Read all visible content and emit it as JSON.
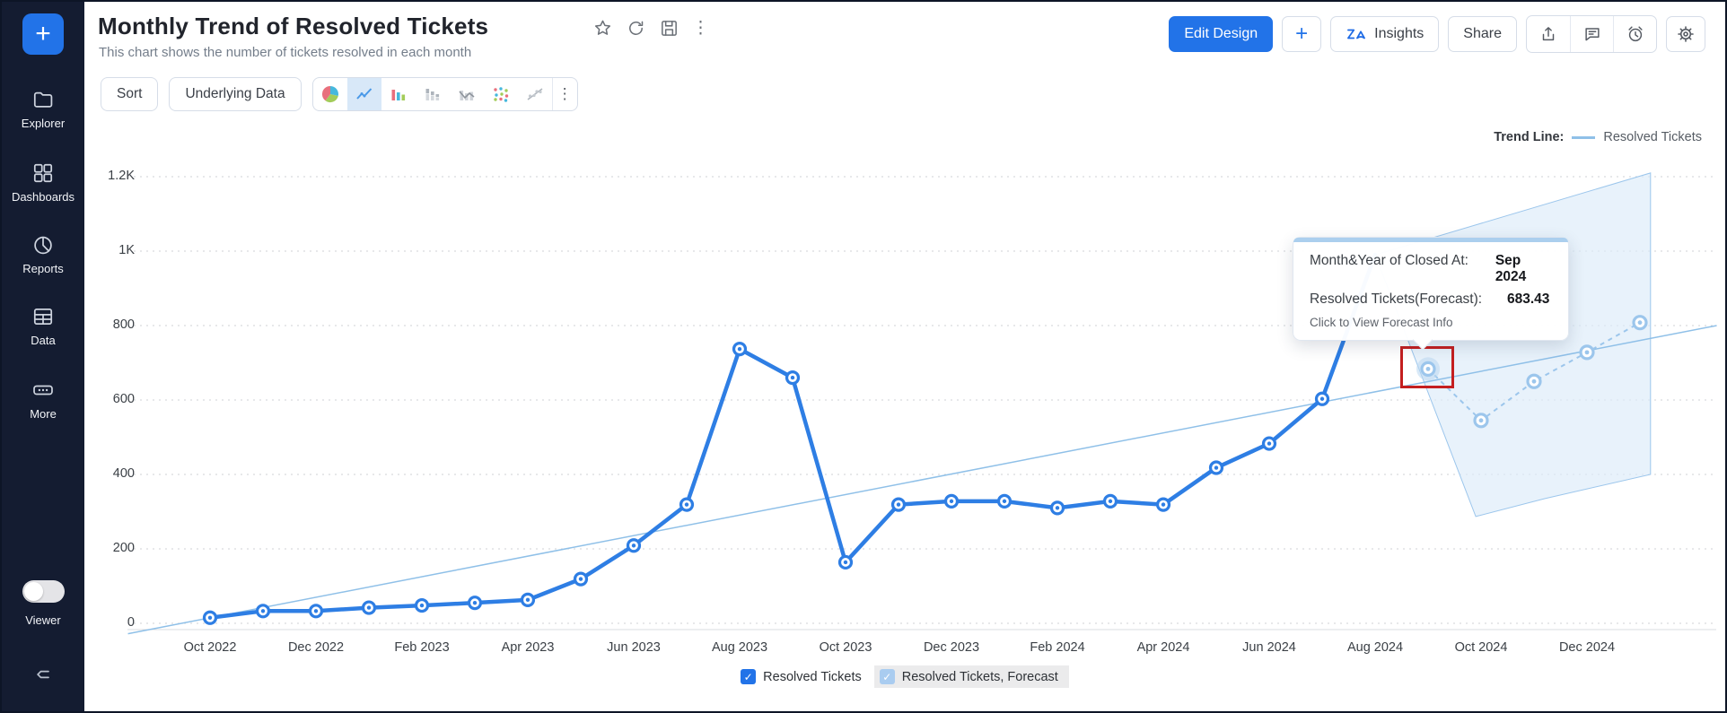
{
  "sidebar": {
    "add_label": "+",
    "items": [
      {
        "label": "Explorer"
      },
      {
        "label": "Dashboards"
      },
      {
        "label": "Reports"
      },
      {
        "label": "Data"
      },
      {
        "label": "More"
      }
    ],
    "viewer_label": "Viewer"
  },
  "header": {
    "title": "Monthly Trend of Resolved Tickets",
    "subtitle": "This chart shows the number of tickets resolved in each month",
    "edit_design": "Edit Design",
    "add": "+",
    "insights": "Insights",
    "share": "Share"
  },
  "toolbar": {
    "sort": "Sort",
    "underlying_data": "Underlying Data",
    "more": "⋮"
  },
  "trend_legend": {
    "label": "Trend Line:",
    "series": "Resolved Tickets"
  },
  "tooltip": {
    "row1_label": "Month&Year of Closed At:",
    "row1_value": "Sep 2024",
    "row2_label": "Resolved Tickets(Forecast):",
    "row2_value": "683.43",
    "footer": "Click to View Forecast Info"
  },
  "legend": {
    "check": "✓"
  },
  "colors": {
    "accent": "#2273e8",
    "line": "#2e7ee4",
    "forecast": "#9cc6ec",
    "band_fill": "#dcebf9",
    "sidebar_bg": "#141c31",
    "highlight_box": "#c41f1f"
  },
  "chart_data": {
    "type": "line",
    "title": "Monthly Trend of Resolved Tickets",
    "x_tick_labels": [
      "Oct 2022",
      "Dec 2022",
      "Feb 2023",
      "Apr 2023",
      "Jun 2023",
      "Aug 2023",
      "Oct 2023",
      "Dec 2023",
      "Feb 2024",
      "Apr 2024",
      "Jun 2024",
      "Aug 2024",
      "Oct 2024",
      "Dec 2024"
    ],
    "y_tick_labels": [
      "0",
      "200",
      "400",
      "600",
      "800",
      "1K",
      "1.2K"
    ],
    "ylim": [
      0,
      1200
    ],
    "grid": "horizontal-dashed",
    "legend_position": "bottom",
    "series": [
      {
        "name": "Resolved Tickets",
        "months": [
          "Oct 2022",
          "Nov 2022",
          "Dec 2022",
          "Jan 2023",
          "Feb 2023",
          "Mar 2023",
          "Apr 2023",
          "May 2023",
          "Jun 2023",
          "Jul 2023",
          "Aug 2023",
          "Sep 2023",
          "Oct 2023",
          "Nov 2023",
          "Dec 2023",
          "Jan 2024",
          "Feb 2024",
          "Mar 2024",
          "Apr 2024",
          "May 2024",
          "Jun 2024",
          "Jul 2024",
          "Aug 2024"
        ],
        "values": [
          15,
          33,
          33,
          42,
          48,
          55,
          63,
          119,
          209,
          319,
          737,
          660,
          164,
          319,
          328,
          328,
          310,
          328,
          319,
          418,
          483,
          603,
          990
        ]
      },
      {
        "name": "Resolved Tickets, Forecast",
        "months": [
          "Sep 2024",
          "Oct 2024",
          "Nov 2024",
          "Dec 2024",
          "Jan 2025"
        ],
        "values": [
          683.43,
          545,
          650,
          728,
          808
        ]
      }
    ],
    "trend_line": {
      "name": "Resolved Tickets",
      "i0": -1.55,
      "v0": -28,
      "i1": 28.45,
      "v1": 800
    },
    "forecast_band": {
      "points": [
        [
          22,
          990
        ],
        [
          27.2,
          1210
        ],
        [
          27.2,
          400
        ],
        [
          25.2,
          335
        ],
        [
          23.9,
          287
        ]
      ]
    },
    "highlighted_point": {
      "month": "Sep 2024",
      "value": 683.43
    }
  }
}
